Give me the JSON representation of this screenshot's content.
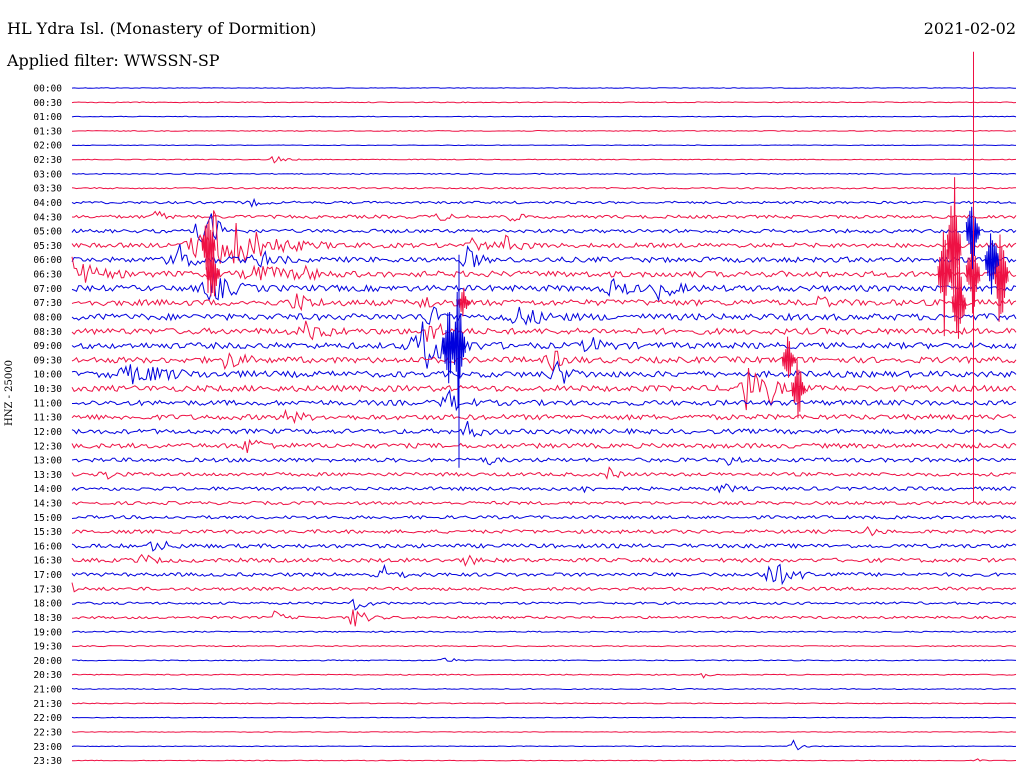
{
  "header": {
    "station_title": "HL Ydra Isl. (Monastery of Dormition)",
    "date": "2021-02-02",
    "filter_label": "Applied filter: WWSSN-SP"
  },
  "chart_data": {
    "type": "line",
    "title": "HL Ydra Isl. (Monastery of Dormition)",
    "subtitle": "Applied filter: WWSSN-SP",
    "ylabel": "HNZ - 25000",
    "xlabel": "",
    "trace_colors": [
      "#0000dd",
      "#ee1144"
    ],
    "grid": false,
    "trace_labels": [
      "00:00",
      "00:30",
      "01:00",
      "01:30",
      "02:00",
      "02:30",
      "03:00",
      "03:30",
      "04:00",
      "04:30",
      "05:00",
      "05:30",
      "06:00",
      "06:30",
      "07:00",
      "07:30",
      "08:00",
      "08:30",
      "09:00",
      "09:30",
      "10:00",
      "10:30",
      "11:00",
      "11:30",
      "12:00",
      "12:30",
      "13:00",
      "13:30",
      "14:00",
      "14:30",
      "15:00",
      "15:30",
      "16:00",
      "16:30",
      "17:00",
      "17:30",
      "18:00",
      "18:30",
      "19:00",
      "19:30",
      "20:00",
      "20:30",
      "21:00",
      "21:30",
      "22:00",
      "22:30",
      "23:00",
      "23:30"
    ],
    "noise_level": [
      0.3,
      0.4,
      0.3,
      0.4,
      0.3,
      0.4,
      0.5,
      0.7,
      1.2,
      1.6,
      1.8,
      2.2,
      2.6,
      3.0,
      3.0,
      3.0,
      3.2,
      3.0,
      3.0,
      3.0,
      3.0,
      3.0,
      2.6,
      2.6,
      2.4,
      2.4,
      2.0,
      1.8,
      1.8,
      1.6,
      1.6,
      1.8,
      2.0,
      2.0,
      1.8,
      1.6,
      1.2,
      1.2,
      0.6,
      0.5,
      0.5,
      0.5,
      0.5,
      0.4,
      0.3,
      0.3,
      0.3,
      0.3
    ],
    "events": [
      {
        "trace": "02:30",
        "t": 0.215,
        "amp": 4,
        "dur": 0.008
      },
      {
        "trace": "04:00",
        "t": 0.19,
        "amp": 3,
        "dur": 0.01
      },
      {
        "trace": "04:30",
        "t": 0.09,
        "amp": 7,
        "dur": 0.006
      },
      {
        "trace": "04:30",
        "t": 0.39,
        "amp": 4,
        "dur": 0.008
      },
      {
        "trace": "04:30",
        "t": 0.465,
        "amp": 6,
        "dur": 0.006
      },
      {
        "trace": "05:00",
        "t": 0.135,
        "amp": 14,
        "dur": 0.006
      },
      {
        "trace": "05:00",
        "t": 0.148,
        "amp": 18,
        "dur": 0.008
      },
      {
        "trace": "05:30",
        "t": 0.155,
        "amp": 40,
        "dur": 0.03
      },
      {
        "trace": "05:30",
        "t": 0.425,
        "amp": 6,
        "dur": 0.01
      },
      {
        "trace": "05:30",
        "t": 0.46,
        "amp": 8,
        "dur": 0.012
      },
      {
        "trace": "06:00",
        "t": 0.115,
        "amp": 14,
        "dur": 0.015
      },
      {
        "trace": "06:00",
        "t": 0.2,
        "amp": 8,
        "dur": 0.012
      },
      {
        "trace": "06:00",
        "t": 0.42,
        "amp": 12,
        "dur": 0.008
      },
      {
        "trace": "06:30",
        "t": 0.0,
        "amp": 18,
        "dur": 0.015
      },
      {
        "trace": "06:30",
        "t": 0.2,
        "amp": 8,
        "dur": 0.02
      },
      {
        "trace": "06:30",
        "t": 0.245,
        "amp": 6,
        "dur": 0.01
      },
      {
        "trace": "07:00",
        "t": 0.15,
        "amp": 14,
        "dur": 0.015
      },
      {
        "trace": "07:00",
        "t": 0.575,
        "amp": 8,
        "dur": 0.012
      },
      {
        "trace": "07:00",
        "t": 0.625,
        "amp": 11,
        "dur": 0.01
      },
      {
        "trace": "07:30",
        "t": 0.24,
        "amp": 8,
        "dur": 0.012
      },
      {
        "trace": "07:30",
        "t": 0.375,
        "amp": 5,
        "dur": 0.01
      },
      {
        "trace": "07:30",
        "t": 0.79,
        "amp": 7,
        "dur": 0.008
      },
      {
        "trace": "08:00",
        "t": 0.38,
        "amp": 10,
        "dur": 0.01
      },
      {
        "trace": "08:00",
        "t": 0.475,
        "amp": 8,
        "dur": 0.02
      },
      {
        "trace": "08:30",
        "t": 0.25,
        "amp": 8,
        "dur": 0.015
      },
      {
        "trace": "08:30",
        "t": 0.38,
        "amp": 14,
        "dur": 0.008
      },
      {
        "trace": "09:00",
        "t": 0.375,
        "amp": 26,
        "dur": 0.018
      },
      {
        "trace": "09:00",
        "t": 0.55,
        "amp": 7,
        "dur": 0.012
      },
      {
        "trace": "09:30",
        "t": 0.165,
        "amp": 8,
        "dur": 0.012
      },
      {
        "trace": "09:30",
        "t": 0.51,
        "amp": 10,
        "dur": 0.008
      },
      {
        "trace": "10:00",
        "t": 0.07,
        "amp": 8,
        "dur": 0.03
      },
      {
        "trace": "10:00",
        "t": 0.515,
        "amp": 12,
        "dur": 0.01
      },
      {
        "trace": "10:30",
        "t": 0.715,
        "amp": 26,
        "dur": 0.01
      },
      {
        "trace": "10:30",
        "t": 0.74,
        "amp": 12,
        "dur": 0.006
      },
      {
        "trace": "11:00",
        "t": 0.4,
        "amp": 10,
        "dur": 0.012
      },
      {
        "trace": "11:30",
        "t": 0.23,
        "amp": 6,
        "dur": 0.01
      },
      {
        "trace": "12:00",
        "t": 0.42,
        "amp": 8,
        "dur": 0.01
      },
      {
        "trace": "12:30",
        "t": 0.19,
        "amp": 9,
        "dur": 0.01
      },
      {
        "trace": "13:00",
        "t": 0.44,
        "amp": 5,
        "dur": 0.006
      },
      {
        "trace": "13:00",
        "t": 0.695,
        "amp": 5,
        "dur": 0.006
      },
      {
        "trace": "13:30",
        "t": 0.035,
        "amp": 7,
        "dur": 0.006
      },
      {
        "trace": "13:30",
        "t": 0.57,
        "amp": 6,
        "dur": 0.006
      },
      {
        "trace": "14:00",
        "t": 0.54,
        "amp": 8,
        "dur": 0.004
      },
      {
        "trace": "14:00",
        "t": 0.69,
        "amp": 5,
        "dur": 0.008
      },
      {
        "trace": "15:30",
        "t": 0.845,
        "amp": 6,
        "dur": 0.005
      },
      {
        "trace": "16:00",
        "t": 0.09,
        "amp": 6,
        "dur": 0.01
      },
      {
        "trace": "16:30",
        "t": 0.075,
        "amp": 6,
        "dur": 0.008
      },
      {
        "trace": "16:30",
        "t": 0.42,
        "amp": 6,
        "dur": 0.006
      },
      {
        "trace": "17:00",
        "t": 0.33,
        "amp": 8,
        "dur": 0.012
      },
      {
        "trace": "17:00",
        "t": 0.745,
        "amp": 11,
        "dur": 0.018
      },
      {
        "trace": "17:30",
        "t": 0.0,
        "amp": 5,
        "dur": 0.004
      },
      {
        "trace": "18:00",
        "t": 0.3,
        "amp": 8,
        "dur": 0.008
      },
      {
        "trace": "18:30",
        "t": 0.215,
        "amp": 7,
        "dur": 0.006
      },
      {
        "trace": "18:30",
        "t": 0.3,
        "amp": 12,
        "dur": 0.008
      },
      {
        "trace": "20:00",
        "t": 0.395,
        "amp": 5,
        "dur": 0.006
      },
      {
        "trace": "20:30",
        "t": 0.67,
        "amp": 3,
        "dur": 0.004
      },
      {
        "trace": "23:00",
        "t": 0.765,
        "amp": 6,
        "dur": 0.006
      },
      {
        "trace": "23:30",
        "t": 0.96,
        "amp": 3,
        "dur": 0.003
      }
    ],
    "spikes": [
      {
        "trace": "05:30",
        "t": 0.145,
        "amp": 48
      },
      {
        "trace": "06:30",
        "t": 0.15,
        "amp": 40
      },
      {
        "trace": "07:30",
        "t": 0.415,
        "amp": 20
      },
      {
        "trace": "09:00",
        "t": 0.41,
        "amp": 75
      },
      {
        "trace": "09:00",
        "t": 0.4,
        "amp": 50
      },
      {
        "trace": "09:30",
        "t": 0.76,
        "amp": 30
      },
      {
        "trace": "10:30",
        "t": 0.77,
        "amp": 40
      },
      {
        "trace": "05:30",
        "t": 0.935,
        "amp": 90
      },
      {
        "trace": "06:30",
        "t": 0.925,
        "amp": 70
      },
      {
        "trace": "06:30",
        "t": 0.985,
        "amp": 80
      },
      {
        "trace": "06:00",
        "t": 0.975,
        "amp": 55
      },
      {
        "trace": "07:30",
        "t": 0.94,
        "amp": 60
      },
      {
        "trace": "06:30",
        "t": 0.955,
        "amp": 60
      },
      {
        "trace": "05:00",
        "t": 0.955,
        "amp": 55
      }
    ],
    "long_spikes": [
      {
        "trace": "04:30",
        "t": 0.955,
        "up": 165,
        "down": 285
      },
      {
        "trace": "06:00",
        "t": 0.41,
        "up": 5,
        "down": 208
      }
    ]
  }
}
